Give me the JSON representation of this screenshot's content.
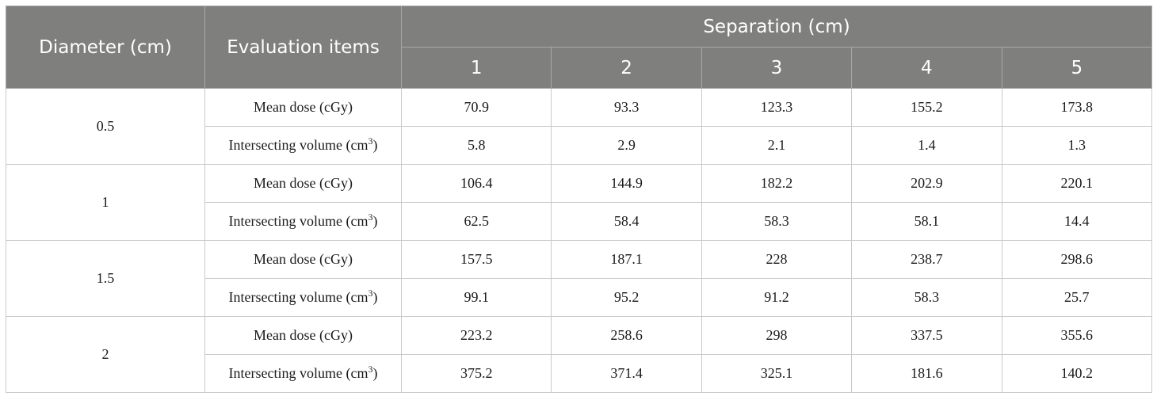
{
  "header": {
    "diameter": "Diameter (cm)",
    "evaluation": "Evaluation items",
    "separation": "Separation (cm)",
    "separations": [
      "1",
      "2",
      "3",
      "4",
      "5"
    ]
  },
  "groups": [
    {
      "diameter": "0.5",
      "rows": [
        {
          "item": "Mean dose (cGy)",
          "values": [
            "70.9",
            "93.3",
            "123.3",
            "155.2",
            "173.8"
          ]
        },
        {
          "item": "Intersecting volume (cm",
          "unit_exp": "3",
          "item_close": ")",
          "values": [
            "5.8",
            "2.9",
            "2.1",
            "1.4",
            "1.3"
          ]
        }
      ]
    },
    {
      "diameter": "1",
      "rows": [
        {
          "item": "Mean dose (cGy)",
          "values": [
            "106.4",
            "144.9",
            "182.2",
            "202.9",
            "220.1"
          ]
        },
        {
          "item": "Intersecting volume (cm",
          "unit_exp": "3",
          "item_close": ")",
          "values": [
            "62.5",
            "58.4",
            "58.3",
            "58.1",
            "14.4"
          ]
        }
      ]
    },
    {
      "diameter": "1.5",
      "rows": [
        {
          "item": "Mean dose (cGy)",
          "values": [
            "157.5",
            "187.1",
            "228",
            "238.7",
            "298.6"
          ]
        },
        {
          "item": "Intersecting volume (cm",
          "unit_exp": "3",
          "item_close": ")",
          "values": [
            "99.1",
            "95.2",
            "91.2",
            "58.3",
            "25.7"
          ]
        }
      ]
    },
    {
      "diameter": "2",
      "rows": [
        {
          "item": "Mean dose (cGy)",
          "values": [
            "223.2",
            "258.6",
            "298",
            "337.5",
            "355.6"
          ]
        },
        {
          "item": "Intersecting volume (cm",
          "unit_exp": "3",
          "item_close": ")",
          "values": [
            "375.2",
            "371.4",
            "325.1",
            "181.6",
            "140.2"
          ]
        }
      ]
    }
  ]
}
